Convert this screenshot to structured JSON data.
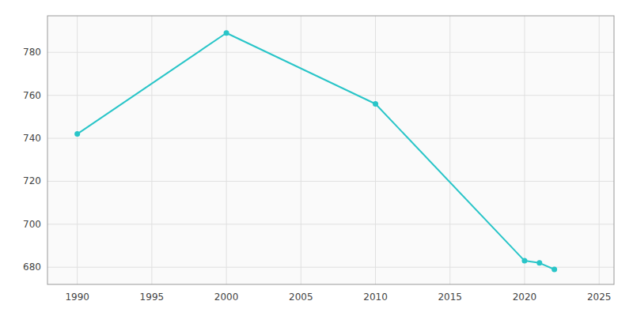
{
  "chart_data": {
    "type": "line",
    "x": [
      1990,
      2000,
      2010,
      2020,
      2021,
      2022
    ],
    "values": [
      742,
      789,
      756,
      683,
      682,
      679
    ],
    "color": "#29C5C8",
    "marker": "circle",
    "xlim": [
      1988,
      2026
    ],
    "ylim": [
      672,
      797
    ],
    "xticks": [
      1990,
      1995,
      2000,
      2005,
      2010,
      2015,
      2020,
      2025
    ],
    "yticks": [
      680,
      700,
      720,
      740,
      760,
      780
    ],
    "grid": true
  }
}
